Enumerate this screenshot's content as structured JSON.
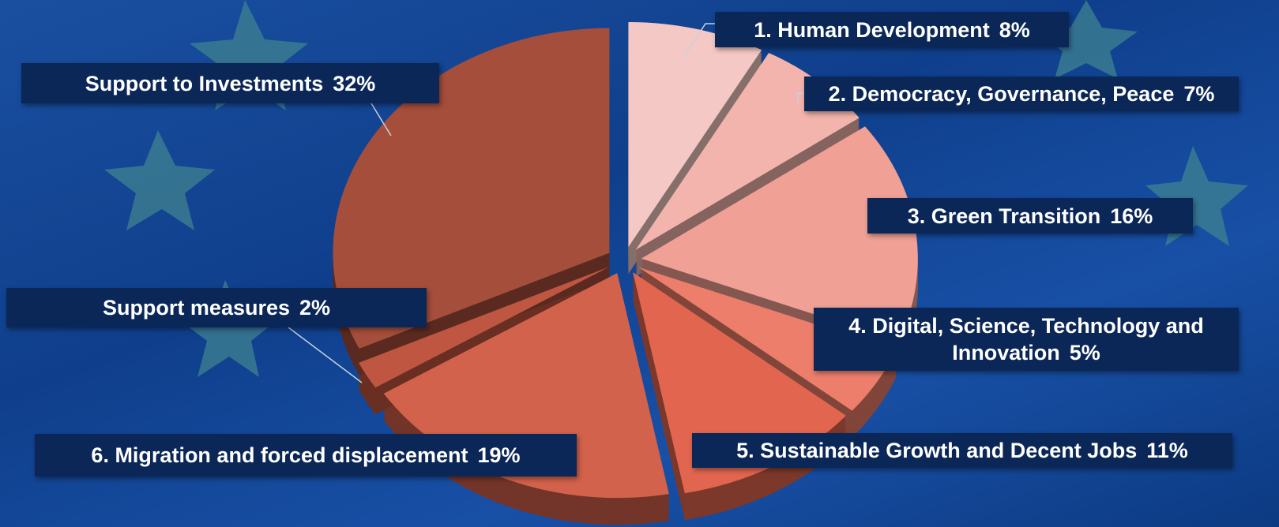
{
  "chart_data": {
    "type": "pie",
    "categories": [
      "1. Human Development",
      "2. Democracy, Governance, Peace",
      "3. Green Transition",
      "4. Digital, Science, Technology and Innovation",
      "5. Sustainable Growth and Decent Jobs",
      "6. Migration and forced displacement",
      "Support measures",
      "Support to Investments"
    ],
    "values": [
      8,
      7,
      16,
      5,
      11,
      19,
      2,
      32
    ],
    "value_labels": [
      "8%",
      "7%",
      "16%",
      "5%",
      "11%",
      "19%",
      "2%",
      "32%"
    ],
    "colors": [
      "#f4c8c4",
      "#f2b4ac",
      "#f0a095",
      "#ec7e6b",
      "#e2664f",
      "#d2624b",
      "#bf5641",
      "#a54e3b"
    ]
  }
}
